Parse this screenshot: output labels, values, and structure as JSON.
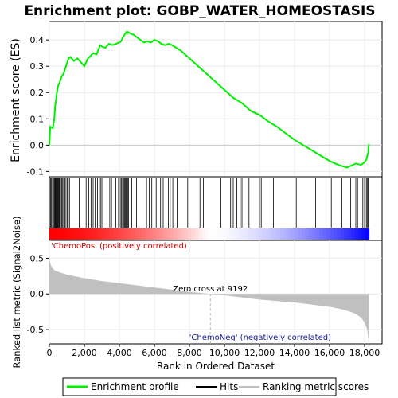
{
  "chart_data": {
    "type": "line",
    "title": "Enrichment plot: GOBP_WATER_HOMEOSTASIS",
    "top_panel": {
      "ylabel": "Enrichment score (ES)",
      "ylim": [
        -0.12,
        0.47
      ],
      "yticks": [
        -0.1,
        0.0,
        0.1,
        0.2,
        0.3,
        0.4
      ],
      "ytick_labels": [
        "-0.1",
        "0.0",
        "0.1",
        "0.2",
        "0.3",
        "0.4"
      ],
      "series": [
        {
          "name": "Enrichment profile",
          "color": "#00ee00",
          "x": [
            0,
            50,
            200,
            280,
            330,
            380,
            430,
            480,
            530,
            600,
            700,
            800,
            900,
            1000,
            1100,
            1200,
            1400,
            1600,
            1800,
            2000,
            2200,
            2300,
            2500,
            2700,
            2900,
            3000,
            3200,
            3400,
            3600,
            3800,
            4000,
            4100,
            4200,
            4300,
            4400,
            4450,
            4500,
            4600,
            4800,
            5000,
            5200,
            5400,
            5600,
            5800,
            6000,
            6200,
            6400,
            6600,
            6800,
            7000,
            7500,
            8000,
            8500,
            9000,
            9500,
            10000,
            10500,
            11000,
            11500,
            12000,
            12500,
            13000,
            13500,
            14000,
            14500,
            15000,
            15500,
            16000,
            16500,
            17000,
            17500,
            17800,
            18000,
            18100,
            18200,
            18250
          ],
          "y": [
            0.0,
            0.07,
            0.065,
            0.1,
            0.15,
            0.17,
            0.2,
            0.22,
            0.23,
            0.24,
            0.26,
            0.27,
            0.29,
            0.31,
            0.33,
            0.335,
            0.32,
            0.33,
            0.315,
            0.3,
            0.33,
            0.335,
            0.35,
            0.345,
            0.38,
            0.375,
            0.37,
            0.385,
            0.38,
            0.385,
            0.39,
            0.395,
            0.41,
            0.42,
            0.43,
            0.425,
            0.43,
            0.425,
            0.42,
            0.41,
            0.4,
            0.39,
            0.395,
            0.39,
            0.4,
            0.395,
            0.385,
            0.38,
            0.385,
            0.38,
            0.36,
            0.33,
            0.3,
            0.27,
            0.24,
            0.21,
            0.18,
            0.16,
            0.13,
            0.115,
            0.09,
            0.07,
            0.045,
            0.02,
            0.0,
            -0.02,
            -0.04,
            -0.06,
            -0.075,
            -0.085,
            -0.07,
            -0.075,
            -0.065,
            -0.055,
            -0.03,
            0.005
          ]
        }
      ]
    },
    "hits_panel": {
      "hits": [
        70,
        120,
        180,
        230,
        280,
        320,
        360,
        390,
        420,
        450,
        480,
        510,
        550,
        590,
        640,
        700,
        760,
        820,
        880,
        950,
        1020,
        1080,
        1150,
        1700,
        2100,
        2250,
        2380,
        2500,
        2620,
        2750,
        2850,
        2920,
        3000,
        3300,
        3450,
        3550,
        3800,
        3950,
        4050,
        4120,
        4180,
        4240,
        4290,
        4340,
        4390,
        4430,
        4470,
        4520,
        4700,
        4980,
        5550,
        5700,
        5850,
        5980,
        6100,
        6350,
        6500,
        6800,
        6900,
        7050,
        7300,
        7900,
        8600,
        8800,
        9800,
        10350,
        10500,
        10700,
        10900,
        11000,
        11400,
        12000,
        12100,
        12800,
        14100,
        15200,
        16100,
        16700,
        17200,
        17500,
        17600,
        17900,
        18000,
        18100,
        18150,
        18200
      ]
    },
    "metric_panel": {
      "ylabel": "Ranked list metric (Signal2Noise)",
      "ylim": [
        -0.7,
        0.75
      ],
      "yticks": [
        -0.5,
        0.0,
        0.5
      ],
      "ytick_labels": [
        "-0.5",
        "0.0",
        "0.5"
      ],
      "metric": {
        "x": [
          0,
          50,
          150,
          300,
          600,
          1000,
          2000,
          3000,
          4000,
          5000,
          6000,
          7000,
          8000,
          9192,
          10000,
          11000,
          12000,
          13000,
          14000,
          15000,
          16000,
          16800,
          17400,
          17800,
          18000,
          18150,
          18250
        ],
        "y": [
          0.52,
          0.43,
          0.37,
          0.33,
          0.3,
          0.27,
          0.22,
          0.18,
          0.15,
          0.12,
          0.09,
          0.06,
          0.03,
          0.0,
          -0.02,
          -0.05,
          -0.08,
          -0.1,
          -0.12,
          -0.15,
          -0.18,
          -0.22,
          -0.27,
          -0.33,
          -0.4,
          -0.5,
          -0.68
        ]
      },
      "zero_cross_label": "Zero cross at 9192",
      "zero_cross": 9192,
      "pos_label": "'ChemoPos' (positively correlated)",
      "neg_label": "'ChemoNeg' (negatively correlated)"
    },
    "xaxis": {
      "xlabel": "Rank in Ordered Dataset",
      "xlim": [
        0,
        19000
      ],
      "xticks": [
        0,
        2000,
        4000,
        6000,
        8000,
        10000,
        12000,
        14000,
        16000,
        18000
      ],
      "xtick_labels": [
        "0",
        "2,000",
        "4,000",
        "6,000",
        "8,000",
        "10,000",
        "12,000",
        "14,000",
        "16,000",
        "18,000"
      ],
      "data_end": 18250
    },
    "legend": {
      "placement": "bottom",
      "items": [
        {
          "label": "Enrichment profile",
          "color": "#00ee00"
        },
        {
          "label": "Hits",
          "color": "#000000"
        },
        {
          "label": "Ranking metric scores",
          "color": "#c0c0c0"
        }
      ]
    },
    "colors": {
      "es_line": "#00ee00",
      "metric_fill": "#c0c0c0",
      "grid": "#e8e8e8",
      "bar_pos": "#ff0000",
      "bar_neg": "#0000ee"
    }
  }
}
